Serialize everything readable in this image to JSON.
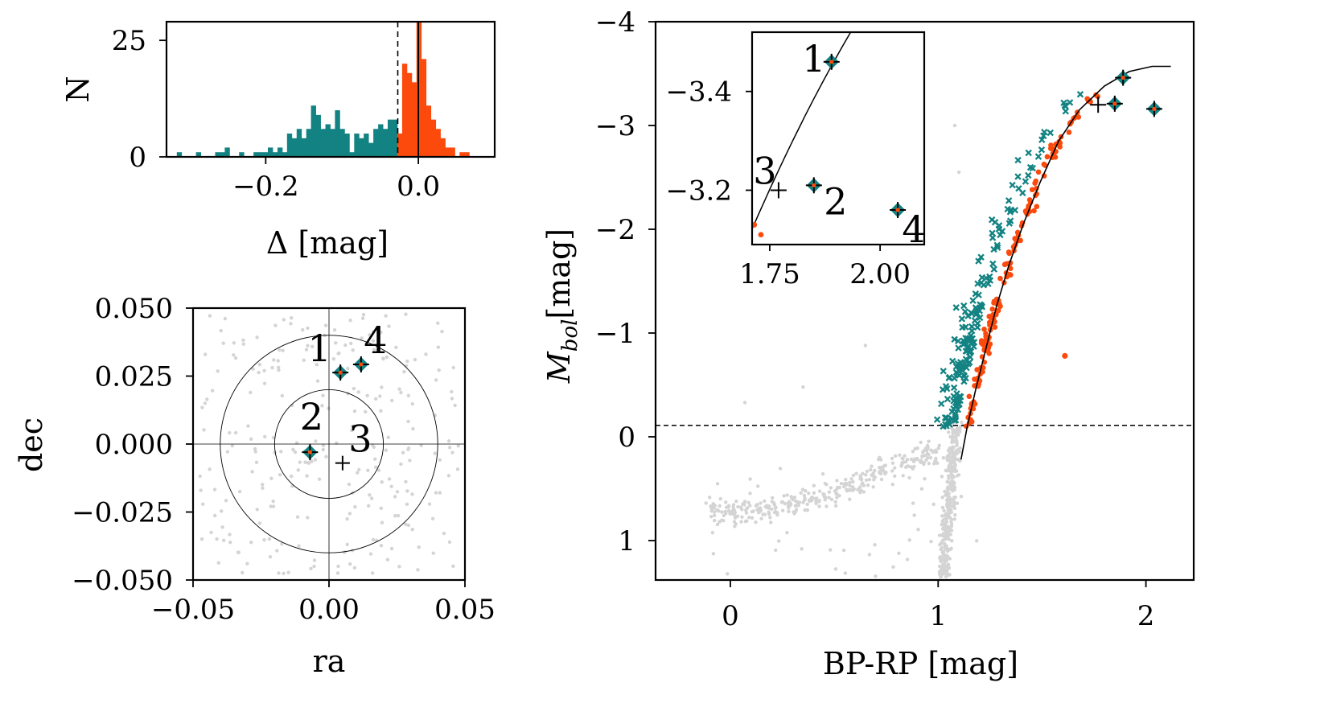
{
  "colors": {
    "teal": "#138282",
    "orange": "#fb4a0c",
    "grey": "#d4d4d4",
    "axis": "#000000"
  },
  "chart_data": [
    {
      "id": "hist",
      "type": "bar",
      "xlabel": "Δ [mag]",
      "ylabel": "N",
      "xlim": [
        -0.33,
        0.1
      ],
      "ylim": [
        0,
        29
      ],
      "xticks": [
        -0.2,
        0.0
      ],
      "xtick_labels": [
        "−0.2",
        "0.0"
      ],
      "yticks": [
        0,
        25
      ],
      "ytick_labels": [
        "0",
        "25"
      ],
      "cut": -0.027,
      "bin_width": 0.00628,
      "bins_left": [
        -0.3165,
        -0.2914,
        -0.2663,
        -0.26,
        -0.2537,
        -0.2349,
        -0.216,
        -0.2098,
        -0.2035,
        -0.1972,
        -0.1909,
        -0.1846,
        -0.1783,
        -0.1721,
        -0.1658,
        -0.1595,
        -0.1532,
        -0.1469,
        -0.1407,
        -0.1344,
        -0.1281,
        -0.1218,
        -0.1155,
        -0.1093,
        -0.103,
        -0.0967,
        -0.0904,
        -0.0841,
        -0.0779,
        -0.0716,
        -0.0653,
        -0.059,
        -0.0527,
        -0.0464,
        -0.0402,
        -0.0339,
        -0.0276,
        -0.0213,
        -0.015,
        -0.0088,
        -0.0025,
        0.0038,
        0.0101,
        0.0164,
        0.0226,
        0.0289,
        0.0352,
        0.0415,
        0.054,
        0.0603
      ],
      "counts": [
        1,
        1,
        1,
        1,
        2,
        1,
        1,
        1,
        1,
        2,
        1,
        2,
        1,
        5,
        4,
        6,
        4,
        6,
        11,
        9,
        6,
        7,
        6,
        10,
        6,
        5,
        1,
        5,
        4,
        5,
        3,
        6,
        7,
        6,
        8,
        8,
        5,
        20,
        18,
        16,
        29,
        21,
        11,
        8,
        6,
        4,
        2,
        2,
        1,
        1
      ],
      "split": 36
    },
    {
      "id": "sky",
      "type": "scatter",
      "xlabel": "ra",
      "ylabel": "dec",
      "xlim": [
        -0.05,
        0.05
      ],
      "ylim": [
        -0.05,
        0.05
      ],
      "xticks": [
        -0.05,
        0.0,
        0.05
      ],
      "xtick_labels": [
        "−0.05",
        "0.00",
        "0.05"
      ],
      "yticks": [
        0.05,
        0.025,
        0.0,
        -0.025,
        -0.05
      ],
      "ytick_labels": [
        "0.050",
        "0.025",
        "0.000",
        "−0.025",
        "−0.050"
      ],
      "circle_radii": [
        0.02,
        0.04
      ],
      "members": [
        {
          "label": "1",
          "ra": 0.0042,
          "dec": 0.0263,
          "marker": "teal-plus"
        },
        {
          "label": "4",
          "ra": 0.0118,
          "dec": 0.0293,
          "marker": "teal-plus"
        },
        {
          "label": "2",
          "ra": -0.007,
          "dec": -0.003,
          "marker": "teal-plus"
        },
        {
          "label": "3",
          "ra": 0.005,
          "dec": -0.007,
          "marker": "plus"
        }
      ],
      "field_count": 260
    },
    {
      "id": "cmd",
      "type": "scatter",
      "xlabel": "BP-RP [mag]",
      "ylabel": "M_bol [mag]",
      "xlim": [
        -0.36,
        2.23
      ],
      "ylim": [
        1.38,
        -4.0
      ],
      "xticks": [
        0,
        1,
        2
      ],
      "xtick_labels": [
        "0",
        "1",
        "2"
      ],
      "yticks": [
        -4,
        -3,
        -2,
        -1,
        0,
        1
      ],
      "ytick_labels": [
        "−4",
        "−3",
        "−2",
        "−1",
        "0",
        "1"
      ],
      "hline": -0.11,
      "isochrone": [
        [
          1.11,
          0.22
        ],
        [
          1.14,
          -0.1
        ],
        [
          1.18,
          -0.45
        ],
        [
          1.23,
          -0.85
        ],
        [
          1.28,
          -1.25
        ],
        [
          1.34,
          -1.65
        ],
        [
          1.41,
          -2.05
        ],
        [
          1.49,
          -2.45
        ],
        [
          1.58,
          -2.85
        ],
        [
          1.68,
          -3.15
        ],
        [
          1.8,
          -3.38
        ],
        [
          1.92,
          -3.52
        ],
        [
          2.03,
          -3.57
        ],
        [
          2.12,
          -3.57
        ]
      ],
      "highlighted": [
        {
          "label": "1",
          "bprp": 1.89,
          "mbol": -3.46,
          "marker": "teal-plus"
        },
        {
          "label": "2",
          "bprp": 1.85,
          "mbol": -3.21,
          "marker": "teal-plus"
        },
        {
          "label": "3",
          "bprp": 1.77,
          "mbol": -3.2,
          "marker": "plus"
        },
        {
          "label": "4",
          "bprp": 2.04,
          "mbol": -3.16,
          "marker": "teal-plus"
        }
      ],
      "outlier": {
        "bprp": 1.61,
        "mbol": -0.78
      },
      "field_count": 700,
      "orange_count": 150,
      "teal_count": 170
    },
    {
      "id": "inset",
      "type": "scatter",
      "xlim": [
        1.71,
        2.1
      ],
      "ylim": [
        3.09,
        3.52
      ],
      "xticks": [
        1.75,
        2.0
      ],
      "xtick_labels": [
        "1.75",
        "2.00"
      ],
      "yticks": [
        -3.4,
        -3.2
      ],
      "ytick_labels": [
        "−3.4",
        "−3.2"
      ],
      "stars": [
        {
          "label": "1",
          "bprp": 1.89,
          "mbol": -3.46,
          "marker": "teal-plus"
        },
        {
          "label": "2",
          "bprp": 1.85,
          "mbol": -3.21,
          "marker": "teal-plus"
        },
        {
          "label": "3",
          "bprp": 1.77,
          "mbol": -3.2,
          "marker": "plus"
        },
        {
          "label": "4",
          "bprp": 2.04,
          "mbol": -3.16,
          "marker": "teal-plus"
        }
      ],
      "nearby_orange": [
        [
          1.715,
          -3.13
        ],
        [
          1.73,
          -3.11
        ],
        [
          1.72,
          -3.08
        ],
        [
          1.76,
          -3.06
        ],
        [
          1.735,
          -3.03
        ]
      ]
    }
  ]
}
